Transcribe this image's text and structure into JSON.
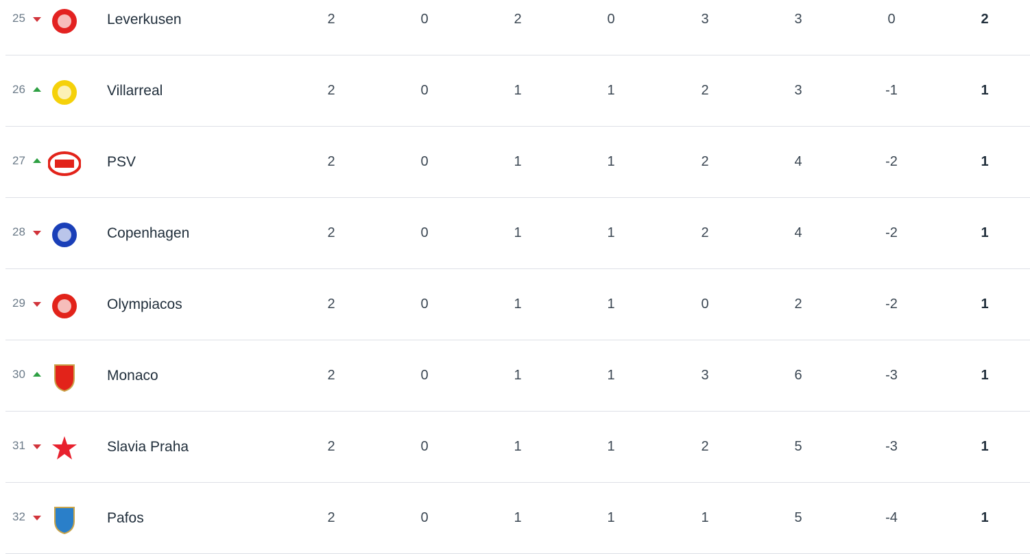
{
  "colors": {
    "down": "#d1343b",
    "up": "#2ea043",
    "divider": "#dde0e6"
  },
  "rows": [
    {
      "rank": "25",
      "trend": "down",
      "team": "Leverkusen",
      "logo": "leverkusen-crest",
      "logo_color": "#e32221",
      "stats": [
        "2",
        "0",
        "2",
        "0",
        "3",
        "3",
        "0"
      ],
      "pts": "2"
    },
    {
      "rank": "26",
      "trend": "up",
      "team": "Villarreal",
      "logo": "villarreal-crest",
      "logo_color": "#f5d10a",
      "stats": [
        "2",
        "0",
        "1",
        "1",
        "2",
        "3",
        "-1"
      ],
      "pts": "1"
    },
    {
      "rank": "27",
      "trend": "up",
      "team": "PSV",
      "logo": "psv-crest",
      "logo_color": "#e2231a",
      "stats": [
        "2",
        "0",
        "1",
        "1",
        "2",
        "4",
        "-2"
      ],
      "pts": "1"
    },
    {
      "rank": "28",
      "trend": "down",
      "team": "Copenhagen",
      "logo": "copenhagen-crest",
      "logo_color": "#1a3fb8",
      "stats": [
        "2",
        "0",
        "1",
        "1",
        "2",
        "4",
        "-2"
      ],
      "pts": "1"
    },
    {
      "rank": "29",
      "trend": "down",
      "team": "Olympiacos",
      "logo": "olympiacos-crest",
      "logo_color": "#e2231a",
      "stats": [
        "2",
        "0",
        "1",
        "1",
        "0",
        "2",
        "-2"
      ],
      "pts": "1"
    },
    {
      "rank": "30",
      "trend": "up",
      "team": "Monaco",
      "logo": "monaco-crest",
      "logo_color": "#e2231a",
      "stats": [
        "2",
        "0",
        "1",
        "1",
        "3",
        "6",
        "-3"
      ],
      "pts": "1"
    },
    {
      "rank": "31",
      "trend": "down",
      "team": "Slavia Praha",
      "logo": "slavia-praha-crest",
      "logo_color": "#e8212e",
      "stats": [
        "2",
        "0",
        "1",
        "1",
        "2",
        "5",
        "-3"
      ],
      "pts": "1"
    },
    {
      "rank": "32",
      "trend": "down",
      "team": "Pafos",
      "logo": "pafos-crest",
      "logo_color": "#2a7fc9",
      "stats": [
        "2",
        "0",
        "1",
        "1",
        "1",
        "5",
        "-4"
      ],
      "pts": "1"
    }
  ]
}
